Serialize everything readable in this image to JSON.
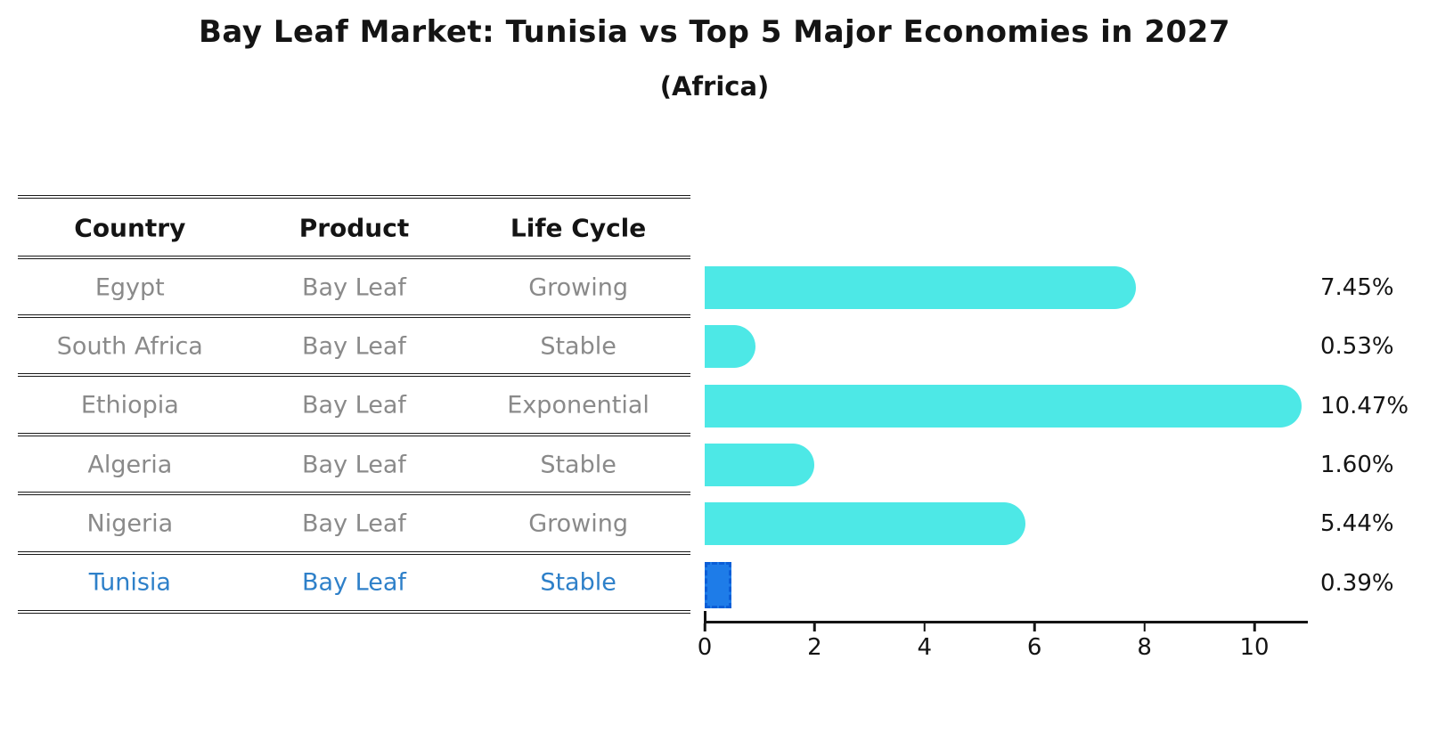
{
  "header": {
    "title": "Bay Leaf Market: Tunisia vs Top 5 Major Economies in 2027",
    "subtitle": "(Africa)"
  },
  "table": {
    "columns": [
      "Country",
      "Product",
      "Life Cycle"
    ],
    "rows": [
      {
        "country": "Egypt",
        "product": "Bay Leaf",
        "life_cycle": "Growing"
      },
      {
        "country": "South Africa",
        "product": "Bay Leaf",
        "life_cycle": "Stable"
      },
      {
        "country": "Ethiopia",
        "product": "Bay Leaf",
        "life_cycle": "Exponential"
      },
      {
        "country": "Algeria",
        "product": "Bay Leaf",
        "life_cycle": "Stable"
      },
      {
        "country": "Nigeria",
        "product": "Bay Leaf",
        "life_cycle": "Growing"
      },
      {
        "country": "Tunisia",
        "product": "Bay Leaf",
        "life_cycle": "Stable"
      }
    ],
    "highlight_row": 5
  },
  "chart_data": {
    "type": "bar",
    "orientation": "horizontal",
    "title": "Bay Leaf Market: Tunisia vs Top 5 Major Economies in 2027",
    "subtitle": "(Africa)",
    "categories": [
      "Egypt",
      "South Africa",
      "Ethiopia",
      "Algeria",
      "Nigeria",
      "Tunisia"
    ],
    "values": [
      7.45,
      0.53,
      10.47,
      1.6,
      5.44,
      0.39
    ],
    "value_labels": [
      "7.45%",
      "0.53%",
      "10.47%",
      "1.60%",
      "5.44%",
      "0.39%"
    ],
    "x_ticks": [
      "0",
      "2",
      "4",
      "6",
      "8",
      "10"
    ],
    "xlim": [
      0,
      11
    ],
    "grid": false,
    "legend": false,
    "bar_color": "#4DE8E6",
    "highlight_index": 5,
    "highlight_color": "#1E7CE8",
    "highlight_edge_color": "#0B5ED7",
    "highlight_text_color": "#2E80C9"
  }
}
